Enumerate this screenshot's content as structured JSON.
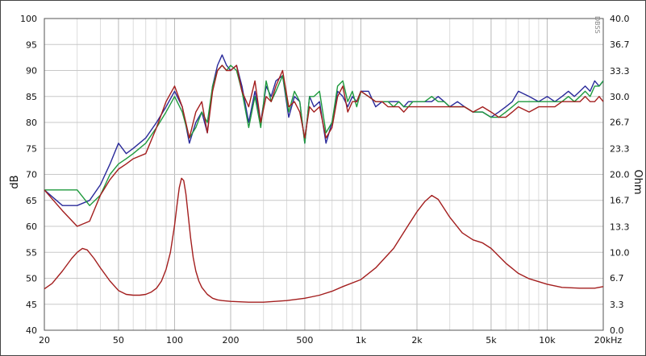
{
  "chart_data": {
    "type": "line",
    "side_mark": "DBSS",
    "y_left_label": "dB",
    "y_right_label": "Ohm",
    "x_unit": "kHz",
    "x_scale": "log",
    "x_range": [
      20,
      20000
    ],
    "y_left_range": [
      40,
      100
    ],
    "y_right_range": [
      0,
      40
    ],
    "grid": true,
    "x_ticks": [
      {
        "v": 20,
        "label": "20"
      },
      {
        "v": 50,
        "label": "50"
      },
      {
        "v": 100,
        "label": "100"
      },
      {
        "v": 200,
        "label": "200"
      },
      {
        "v": 500,
        "label": "500"
      },
      {
        "v": 1000,
        "label": "1k"
      },
      {
        "v": 2000,
        "label": "2k"
      },
      {
        "v": 5000,
        "label": "5k"
      },
      {
        "v": 10000,
        "label": "10k"
      },
      {
        "v": 20000,
        "label": "20kHz"
      }
    ],
    "y_left_ticks": [
      "40",
      "45",
      "50",
      "55",
      "60",
      "65",
      "70",
      "75",
      "80",
      "85",
      "90",
      "95",
      "100"
    ],
    "y_right_ticks": [
      {
        "v": 0,
        "label": "0.0"
      },
      {
        "v": 3.3,
        "label": "3.3"
      },
      {
        "v": 6.7,
        "label": "6.7"
      },
      {
        "v": 10,
        "label": "10.0"
      },
      {
        "v": 13.3,
        "label": "13.3"
      },
      {
        "v": 16.7,
        "label": "16.7"
      },
      {
        "v": 20,
        "label": "20.0"
      },
      {
        "v": 23.3,
        "label": "23.3"
      },
      {
        "v": 26.7,
        "label": "26.7"
      },
      {
        "v": 30,
        "label": "30.0"
      },
      {
        "v": 33.3,
        "label": "33.3"
      },
      {
        "v": 36.7,
        "label": "36.7"
      },
      {
        "v": 40,
        "label": "40.0"
      }
    ],
    "series": [
      {
        "color": "#2a2a9a",
        "axis": "left",
        "x": [
          20,
          25,
          30,
          35,
          40,
          45,
          50,
          55,
          60,
          70,
          80,
          90,
          100,
          110,
          120,
          130,
          140,
          150,
          160,
          170,
          180,
          190,
          200,
          215,
          230,
          250,
          270,
          290,
          310,
          330,
          350,
          380,
          410,
          440,
          470,
          500,
          530,
          560,
          600,
          650,
          700,
          750,
          800,
          850,
          900,
          950,
          1000,
          1100,
          1200,
          1300,
          1400,
          1500,
          1600,
          1700,
          1800,
          1900,
          2000,
          2200,
          2400,
          2600,
          2800,
          3000,
          3300,
          3600,
          4000,
          4500,
          5000,
          5500,
          6000,
          6500,
          7000,
          8000,
          9000,
          10000,
          11000,
          12000,
          13000,
          14000,
          15000,
          16000,
          17000,
          18000,
          19000,
          20000
        ],
        "y": [
          67,
          64,
          64,
          65,
          68,
          72,
          76,
          74,
          75,
          77,
          80,
          83,
          86,
          83,
          76,
          80,
          82,
          78,
          87,
          91,
          93,
          91,
          90,
          91,
          87,
          80,
          86,
          80,
          87,
          85,
          88,
          89,
          81,
          85,
          84,
          76,
          85,
          83,
          84,
          76,
          80,
          86,
          85,
          83,
          85,
          84,
          86,
          86,
          83,
          84,
          84,
          84,
          84,
          83,
          84,
          84,
          84,
          84,
          84,
          85,
          84,
          83,
          84,
          83,
          82,
          82,
          81,
          82,
          83,
          84,
          86,
          85,
          84,
          85,
          84,
          85,
          86,
          85,
          86,
          87,
          86,
          88,
          87,
          88
        ]
      },
      {
        "color": "#1f9a3e",
        "axis": "left",
        "x": [
          20,
          25,
          30,
          35,
          40,
          45,
          50,
          55,
          60,
          70,
          80,
          90,
          100,
          110,
          120,
          130,
          140,
          150,
          160,
          170,
          180,
          190,
          200,
          215,
          230,
          250,
          270,
          290,
          310,
          330,
          350,
          380,
          410,
          440,
          470,
          500,
          530,
          560,
          600,
          650,
          700,
          750,
          800,
          850,
          900,
          950,
          1000,
          1100,
          1200,
          1300,
          1400,
          1500,
          1600,
          1700,
          1800,
          1900,
          2000,
          2200,
          2400,
          2600,
          2800,
          3000,
          3300,
          3600,
          4000,
          4500,
          5000,
          5500,
          6000,
          6500,
          7000,
          8000,
          9000,
          10000,
          11000,
          12000,
          13000,
          14000,
          15000,
          16000,
          17000,
          18000,
          19000,
          20000
        ],
        "y": [
          67,
          67,
          67,
          64,
          66,
          70,
          72,
          73,
          74,
          76,
          79,
          82,
          85,
          82,
          77,
          79,
          82,
          80,
          87,
          90,
          91,
          90,
          91,
          90,
          86,
          79,
          85,
          79,
          88,
          84,
          86,
          89,
          82,
          86,
          84,
          76,
          85,
          85,
          86,
          78,
          80,
          87,
          88,
          84,
          86,
          83,
          86,
          85,
          84,
          84,
          84,
          83,
          84,
          83,
          83,
          84,
          84,
          84,
          85,
          84,
          84,
          83,
          83,
          83,
          82,
          82,
          81,
          81,
          82,
          83,
          84,
          84,
          84,
          84,
          84,
          84,
          85,
          84,
          85,
          86,
          85,
          87,
          87,
          88
        ]
      },
      {
        "color": "#a31e1e",
        "axis": "left",
        "x": [
          20,
          25,
          30,
          35,
          40,
          45,
          50,
          55,
          60,
          70,
          80,
          90,
          100,
          110,
          120,
          130,
          140,
          150,
          160,
          170,
          180,
          190,
          200,
          215,
          230,
          250,
          270,
          290,
          310,
          330,
          350,
          380,
          410,
          440,
          470,
          500,
          530,
          560,
          600,
          650,
          700,
          750,
          800,
          850,
          900,
          950,
          1000,
          1100,
          1200,
          1300,
          1400,
          1500,
          1600,
          1700,
          1800,
          1900,
          2000,
          2200,
          2400,
          2600,
          2800,
          3000,
          3300,
          3600,
          4000,
          4500,
          5000,
          5500,
          6000,
          6500,
          7000,
          8000,
          9000,
          10000,
          11000,
          12000,
          13000,
          14000,
          15000,
          16000,
          17000,
          18000,
          19000,
          20000
        ],
        "y": [
          67,
          63,
          60,
          61,
          66,
          69,
          71,
          72,
          73,
          74,
          79,
          84,
          87,
          83,
          77,
          82,
          84,
          78,
          86,
          90,
          91,
          90,
          90,
          91,
          86,
          83,
          88,
          80,
          85,
          84,
          87,
          90,
          83,
          84,
          82,
          77,
          83,
          82,
          83,
          77,
          79,
          85,
          87,
          82,
          84,
          84,
          86,
          85,
          84,
          84,
          83,
          83,
          83,
          82,
          83,
          83,
          83,
          83,
          83,
          83,
          83,
          83,
          83,
          83,
          82,
          83,
          82,
          81,
          81,
          82,
          83,
          82,
          83,
          83,
          83,
          84,
          84,
          84,
          84,
          85,
          84,
          84,
          85,
          84
        ]
      },
      {
        "color": "#a31e1e",
        "axis": "right",
        "x": [
          20,
          22,
          25,
          28,
          30,
          32,
          34,
          37,
          40,
          45,
          50,
          55,
          60,
          65,
          70,
          75,
          80,
          85,
          90,
          95,
          100,
          103,
          106,
          109,
          112,
          115,
          118,
          122,
          126,
          130,
          135,
          140,
          150,
          160,
          170,
          180,
          200,
          250,
          300,
          400,
          500,
          600,
          700,
          800,
          1000,
          1200,
          1500,
          1800,
          2000,
          2200,
          2400,
          2600,
          3000,
          3500,
          4000,
          4500,
          5000,
          6000,
          7000,
          8000,
          10000,
          12000,
          15000,
          18000,
          20000
        ],
        "y": [
          5.3,
          6,
          7.6,
          9.2,
          10,
          10.5,
          10.3,
          9.2,
          8,
          6.3,
          5.1,
          4.6,
          4.5,
          4.5,
          4.6,
          4.9,
          5.4,
          6.3,
          7.8,
          10,
          13.5,
          16,
          18.3,
          19.5,
          19.2,
          17.5,
          15,
          11.8,
          9.3,
          7.6,
          6.3,
          5.5,
          4.6,
          4.1,
          3.9,
          3.8,
          3.7,
          3.6,
          3.6,
          3.8,
          4.1,
          4.5,
          5,
          5.6,
          6.5,
          8,
          10.5,
          13.5,
          15.2,
          16.5,
          17.3,
          16.8,
          14.5,
          12.5,
          11.6,
          11.2,
          10.5,
          8.6,
          7.3,
          6.6,
          5.9,
          5.5,
          5.4,
          5.4,
          5.6
        ]
      }
    ]
  }
}
